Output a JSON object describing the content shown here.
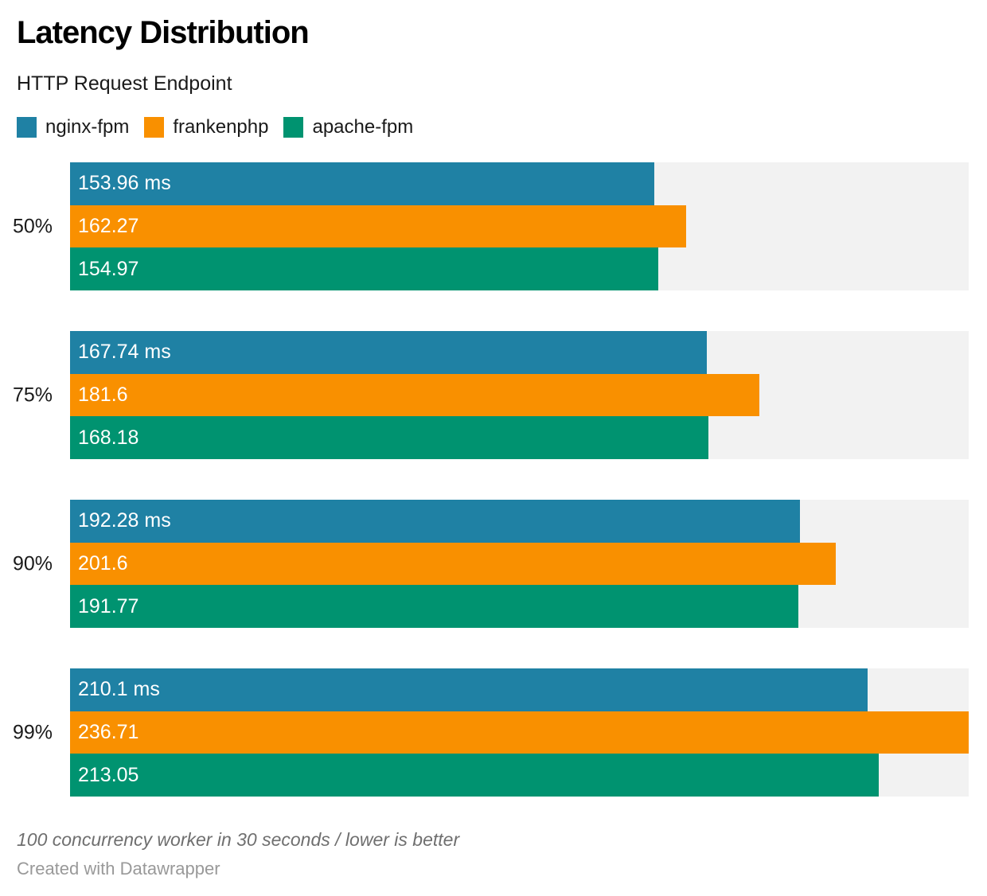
{
  "header": {
    "title": "Latency Distribution",
    "subtitle": "HTTP Request Endpoint"
  },
  "legend": [
    {
      "label": "nginx-fpm",
      "color": "#1f81a4"
    },
    {
      "label": "frankenphp",
      "color": "#f99000"
    },
    {
      "label": "apache-fpm",
      "color": "#009370"
    }
  ],
  "footer": {
    "note": "100 concurrency worker in 30 seconds / lower is better",
    "credit": "Created with Datawrapper"
  },
  "chart_data": {
    "type": "bar",
    "orientation": "horizontal",
    "title": "Latency Distribution",
    "subtitle": "HTTP Request Endpoint",
    "unit": "ms",
    "categories": [
      "50%",
      "75%",
      "90%",
      "99%"
    ],
    "series": [
      {
        "name": "nginx-fpm",
        "color": "#1f81a4",
        "values": [
          153.96,
          167.74,
          192.28,
          210.1
        ],
        "labels": [
          "153.96 ms",
          "167.74 ms",
          "192.28 ms",
          "210.1 ms"
        ]
      },
      {
        "name": "frankenphp",
        "color": "#f99000",
        "values": [
          162.27,
          181.6,
          201.6,
          236.71
        ],
        "labels": [
          "162.27",
          "181.6",
          "201.6",
          "236.71"
        ]
      },
      {
        "name": "apache-fpm",
        "color": "#009370",
        "values": [
          154.97,
          168.18,
          191.77,
          213.05
        ],
        "labels": [
          "154.97",
          "168.18",
          "191.77",
          "213.05"
        ]
      }
    ],
    "xmin": 0,
    "xmax": 236.71,
    "track_color": "#f2f2f2",
    "grid": false,
    "legend_position": "top",
    "value_labels": "inside-start"
  }
}
